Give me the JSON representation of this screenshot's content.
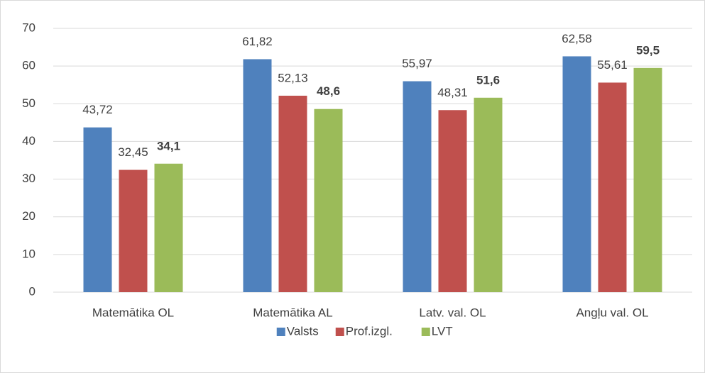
{
  "chart_data": {
    "type": "bar",
    "categories": [
      "Matemātika OL",
      "Matemātika AL",
      "Latv. val. OL",
      "Angļu val. OL"
    ],
    "series": [
      {
        "name": "Valsts",
        "color": "#4f81bd",
        "values": [
          43.72,
          61.82,
          55.97,
          62.58
        ],
        "value_labels": [
          "43,72",
          "61,82",
          "55,97",
          "62,58"
        ],
        "label_bold": false
      },
      {
        "name": "Prof.izgl.",
        "color": "#c0504d",
        "values": [
          32.45,
          52.13,
          48.31,
          55.61
        ],
        "value_labels": [
          "32,45",
          "52,13",
          "48,31",
          "55,61"
        ],
        "label_bold": false
      },
      {
        "name": "LVT",
        "color": "#9bbb59",
        "values": [
          34.1,
          48.6,
          51.6,
          59.5
        ],
        "value_labels": [
          "34,1",
          "48,6",
          "51,6",
          "59,5"
        ],
        "label_bold": true
      }
    ],
    "ylim": [
      0,
      70
    ],
    "yticks": [
      0,
      10,
      20,
      30,
      40,
      50,
      60,
      70
    ],
    "grid": true,
    "legend": "bottom"
  }
}
